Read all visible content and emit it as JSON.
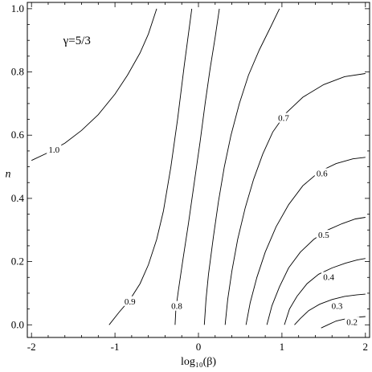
{
  "chart_data": {
    "type": "contour",
    "title": "",
    "annotation": "γ=5/3",
    "xlabel": "log₁₀(β)",
    "ylabel": "n",
    "xlim": [
      -2.05,
      2.05
    ],
    "ylim": [
      -0.04,
      1.02
    ],
    "xticks": [
      -2,
      -1,
      0,
      1,
      2
    ],
    "xtick_labels": [
      "-2",
      "-1",
      "0",
      "1",
      "2"
    ],
    "yticks": [
      0.0,
      0.2,
      0.4,
      0.6,
      0.8,
      1.0
    ],
    "ytick_labels": [
      "0.0",
      "0.2",
      "0.4",
      "0.6",
      "0.8",
      "1.0"
    ],
    "grid": false,
    "contours": [
      {
        "label": "1.0",
        "label_at": [
          -1.73,
          0.555
        ],
        "x": [
          -2.0,
          -1.8,
          -1.6,
          -1.4,
          -1.2,
          -1.0,
          -0.85,
          -0.7,
          -0.6,
          -0.5
        ],
        "y": [
          0.52,
          0.545,
          0.575,
          0.615,
          0.665,
          0.73,
          0.79,
          0.86,
          0.92,
          1.0
        ]
      },
      {
        "label": "0.9",
        "label_at": [
          -0.82,
          0.075
        ],
        "x": [
          -1.07,
          -0.95,
          -0.82,
          -0.7,
          -0.6,
          -0.5,
          -0.42,
          -0.33,
          -0.25,
          -0.17,
          -0.08
        ],
        "y": [
          0.0,
          0.04,
          0.08,
          0.13,
          0.19,
          0.27,
          0.36,
          0.5,
          0.65,
          0.82,
          1.0
        ]
      },
      {
        "label": "0.8",
        "label_at": [
          -0.26,
          0.06
        ],
        "x": [
          -0.28,
          -0.27,
          -0.24,
          -0.19,
          -0.12,
          -0.05,
          0.02,
          0.08,
          0.14,
          0.2,
          0.25
        ],
        "y": [
          0.0,
          0.05,
          0.11,
          0.2,
          0.32,
          0.45,
          0.58,
          0.7,
          0.81,
          0.91,
          1.0
        ]
      },
      {
        "label": "",
        "x": [
          0.07,
          0.09,
          0.12,
          0.18,
          0.24,
          0.31,
          0.39,
          0.49,
          0.6,
          0.73,
          0.86,
          0.97
        ],
        "y": [
          0.0,
          0.08,
          0.16,
          0.28,
          0.39,
          0.5,
          0.6,
          0.7,
          0.79,
          0.87,
          0.94,
          1.0
        ]
      },
      {
        "label": "0.7",
        "label_at": [
          1.02,
          0.655
        ],
        "x": [
          0.32,
          0.35,
          0.4,
          0.47,
          0.56,
          0.66,
          0.77,
          0.89,
          1.05,
          1.25,
          1.5,
          1.75,
          2.0
        ],
        "y": [
          0.0,
          0.08,
          0.17,
          0.27,
          0.37,
          0.46,
          0.54,
          0.61,
          0.67,
          0.72,
          0.76,
          0.785,
          0.795
        ]
      },
      {
        "label": "0.6",
        "label_at": [
          1.48,
          0.48
        ],
        "x": [
          0.57,
          0.62,
          0.7,
          0.8,
          0.93,
          1.08,
          1.25,
          1.45,
          1.65,
          1.85,
          2.0
        ],
        "y": [
          0.0,
          0.07,
          0.15,
          0.23,
          0.31,
          0.38,
          0.44,
          0.485,
          0.51,
          0.525,
          0.53
        ]
      },
      {
        "label": "0.5",
        "label_at": [
          1.5,
          0.285
        ],
        "x": [
          0.82,
          0.88,
          0.97,
          1.08,
          1.22,
          1.38,
          1.55,
          1.72,
          1.88,
          2.0
        ],
        "y": [
          0.0,
          0.06,
          0.12,
          0.18,
          0.23,
          0.27,
          0.3,
          0.32,
          0.335,
          0.34
        ]
      },
      {
        "label": "0.4",
        "label_at": [
          1.56,
          0.152
        ],
        "x": [
          1.03,
          1.09,
          1.18,
          1.3,
          1.44,
          1.6,
          1.76,
          1.9,
          2.0
        ],
        "y": [
          0.0,
          0.05,
          0.09,
          0.13,
          0.16,
          0.18,
          0.195,
          0.205,
          0.21
        ]
      },
      {
        "label": "0.3",
        "label_at": [
          1.66,
          0.06
        ],
        "x": [
          1.15,
          1.22,
          1.32,
          1.45,
          1.6,
          1.75,
          1.9,
          2.0
        ],
        "y": [
          0.0,
          0.02,
          0.045,
          0.065,
          0.08,
          0.09,
          0.095,
          0.097
        ]
      },
      {
        "label": "0.2",
        "label_at": [
          1.84,
          0.01
        ],
        "x": [
          1.47,
          1.55,
          1.65,
          1.78,
          1.9,
          2.0
        ],
        "y": [
          -0.01,
          0.0,
          0.012,
          0.02,
          0.024,
          0.026
        ]
      }
    ]
  }
}
